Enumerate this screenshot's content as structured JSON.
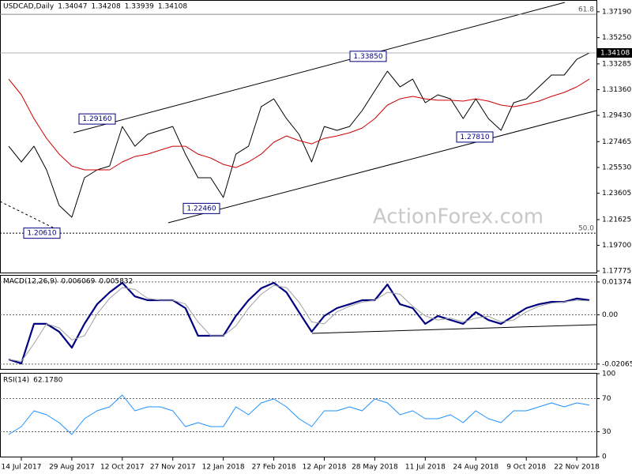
{
  "chart_data": [
    {
      "type": "line",
      "title": "USDCAD,Daily",
      "ohlc": [
        1.34047,
        1.34208,
        1.33939,
        1.34108
      ],
      "ylim": [
        1.1766,
        1.3807
      ],
      "yticks": [
        {
          "value": 1.3719,
          "label": "1.37190"
        },
        {
          "value": 1.3525,
          "label": "1.35250"
        },
        1.33285,
        {
          "value": 1.3136,
          "label": "1.31360"
        },
        {
          "value": 1.2943,
          "label": "1.29430"
        },
        1.27465,
        {
          "value": 1.2553,
          "label": "1.25530"
        },
        1.23605,
        1.21625,
        {
          "value": 1.197,
          "label": "1.19700"
        },
        1.17775
      ],
      "grid": false,
      "series": [
        {
          "color": "#000000",
          "values": [
            1.2712,
            1.2594,
            1.2712,
            1.2535,
            1.2269,
            1.218,
            1.2476,
            1.2535,
            1.2564,
            1.286,
            1.2712,
            1.2801,
            1.2831,
            1.286,
            1.2653,
            1.2476,
            1.2476,
            1.2328,
            1.2653,
            1.2712,
            1.3008,
            1.3067,
            1.2919,
            1.2801,
            1.2594,
            1.286,
            1.2831,
            1.286,
            1.2979,
            1.3127,
            1.3274,
            1.3156,
            1.3215,
            1.3038,
            1.3097,
            1.3067,
            1.2919,
            1.3067,
            1.2919,
            1.2831,
            1.3038,
            1.3067,
            1.3156,
            1.3245,
            1.3245,
            1.3363,
            1.3411
          ]
        },
        {
          "color": "#cc0000",
          "values": [
            1.3215,
            1.3097,
            1.2919,
            1.2771,
            1.2653,
            1.2564,
            1.2535,
            1.2535,
            1.2535,
            1.2594,
            1.2635,
            1.2653,
            1.2683,
            1.2712,
            1.2712,
            1.2653,
            1.2624,
            1.2576,
            1.2552,
            1.2594,
            1.2653,
            1.2742,
            1.2789,
            1.2754,
            1.273,
            1.2771,
            1.2789,
            1.2813,
            1.2848,
            1.2919,
            1.302,
            1.3067,
            1.3085,
            1.3067,
            1.3056,
            1.3056,
            1.305,
            1.3067,
            1.305,
            1.302,
            1.3008,
            1.3026,
            1.305,
            1.3085,
            1.3115,
            1.3156,
            1.3215
          ]
        }
      ],
      "last_price": 1.34108,
      "levels": [
        {
          "value": 1.37,
          "label": "61.8"
        },
        {
          "value": 1.2061,
          "label": "50.0"
        }
      ],
      "annotations": [
        {
          "value": 1.2916,
          "label": "1.29160"
        },
        {
          "value": 1.2246,
          "label": "1.22460"
        },
        {
          "value": 1.2781,
          "label": "1.27810"
        },
        {
          "value": 1.3385,
          "label": "1.33850"
        },
        {
          "value": 1.2061,
          "label": "1.20610"
        }
      ],
      "watermark": "ActionForex.com"
    },
    {
      "type": "line",
      "title": "MACD(12,26,9)",
      "current": [
        0.006069,
        0.005832
      ],
      "ylim": [
        -0.0227,
        0.0167
      ],
      "yticks": [
        0.013745,
        {
          "value": 0,
          "label": "0.00"
        },
        -0.020652
      ],
      "grid": true,
      "series": [
        {
          "color": "#000080",
          "values": [
            -0.0187,
            -0.0204,
            -0.0038,
            -0.0038,
            -0.0071,
            -0.0138,
            -0.0038,
            0.0044,
            0.0094,
            0.0134,
            0.0077,
            0.0061,
            0.0061,
            0.0061,
            0.0028,
            -0.0088,
            -0.0088,
            -0.0088,
            -0.0005,
            0.0061,
            0.0111,
            0.0134,
            0.0094,
            0.0011,
            -0.0071,
            -0.0005,
            0.0028,
            0.0044,
            0.0061,
            0.0061,
            0.0127,
            0.0044,
            0.0028,
            -0.0038,
            -0.0005,
            -0.0022,
            -0.0038,
            0.0011,
            -0.0022,
            -0.0038,
            -0.0005,
            0.0028,
            0.0044,
            0.0054,
            0.0054,
            0.0068,
            0.0061
          ]
        },
        {
          "color": "#a0a0a0",
          "values": [
            -0.0187,
            -0.0196,
            -0.0121,
            -0.0038,
            -0.0055,
            -0.0105,
            -0.0088,
            0.0003,
            0.0069,
            0.0114,
            0.0106,
            0.0069,
            0.0061,
            0.0061,
            0.0045,
            -0.003,
            -0.0088,
            -0.0088,
            -0.0047,
            0.0028,
            0.0086,
            0.0123,
            0.0114,
            0.0053,
            -0.003,
            -0.0038,
            0.0012,
            0.0036,
            0.0053,
            0.0061,
            0.0094,
            0.0086,
            0.0036,
            -0.0005,
            -0.0022,
            -0.0014,
            -0.003,
            -0.0014,
            -0.0006,
            -0.003,
            -0.0022,
            0.0012,
            0.0036,
            0.0049,
            0.0054,
            0.0061,
            0.0058
          ]
        }
      ]
    },
    {
      "type": "line",
      "title": "RSI(14)",
      "current": [
        {
          "value": 62.178,
          "label": "62.1780"
        }
      ],
      "ylim": [
        0,
        100
      ],
      "yticks": [
        100,
        70,
        30,
        0
      ],
      "grid": true,
      "categories": [
        null,
        "14 Jul 2017",
        null,
        null,
        null,
        "29 Aug 2017",
        null,
        null,
        null,
        "12 Oct 2017",
        null,
        null,
        null,
        "27 Nov 2017",
        null,
        null,
        null,
        "12 Jan 2018",
        null,
        null,
        null,
        "27 Feb 2018",
        null,
        null,
        null,
        "12 Apr 2018",
        null,
        null,
        null,
        "28 May 2018",
        null,
        null,
        null,
        "11 Jul 2018",
        null,
        null,
        null,
        "24 Aug 2018",
        null,
        null,
        null,
        "9 Oct 2018",
        null,
        null,
        null,
        "22 Nov 2018",
        null
      ],
      "series": [
        {
          "color": "#1e90ff",
          "values": [
            26.7,
            36.2,
            55.2,
            50.5,
            41.0,
            26.7,
            45.7,
            55.2,
            60.0,
            74.3,
            55.2,
            60.0,
            60.0,
            55.2,
            36.2,
            41.0,
            36.2,
            36.2,
            60.0,
            50.5,
            64.8,
            69.5,
            60.0,
            45.7,
            36.2,
            55.2,
            55.2,
            60.0,
            55.2,
            69.5,
            64.8,
            50.5,
            55.2,
            45.7,
            45.7,
            50.5,
            41.0,
            55.2,
            45.7,
            41.0,
            55.2,
            55.2,
            60.0,
            64.8,
            60.0,
            64.8,
            62.2
          ]
        }
      ]
    }
  ]
}
